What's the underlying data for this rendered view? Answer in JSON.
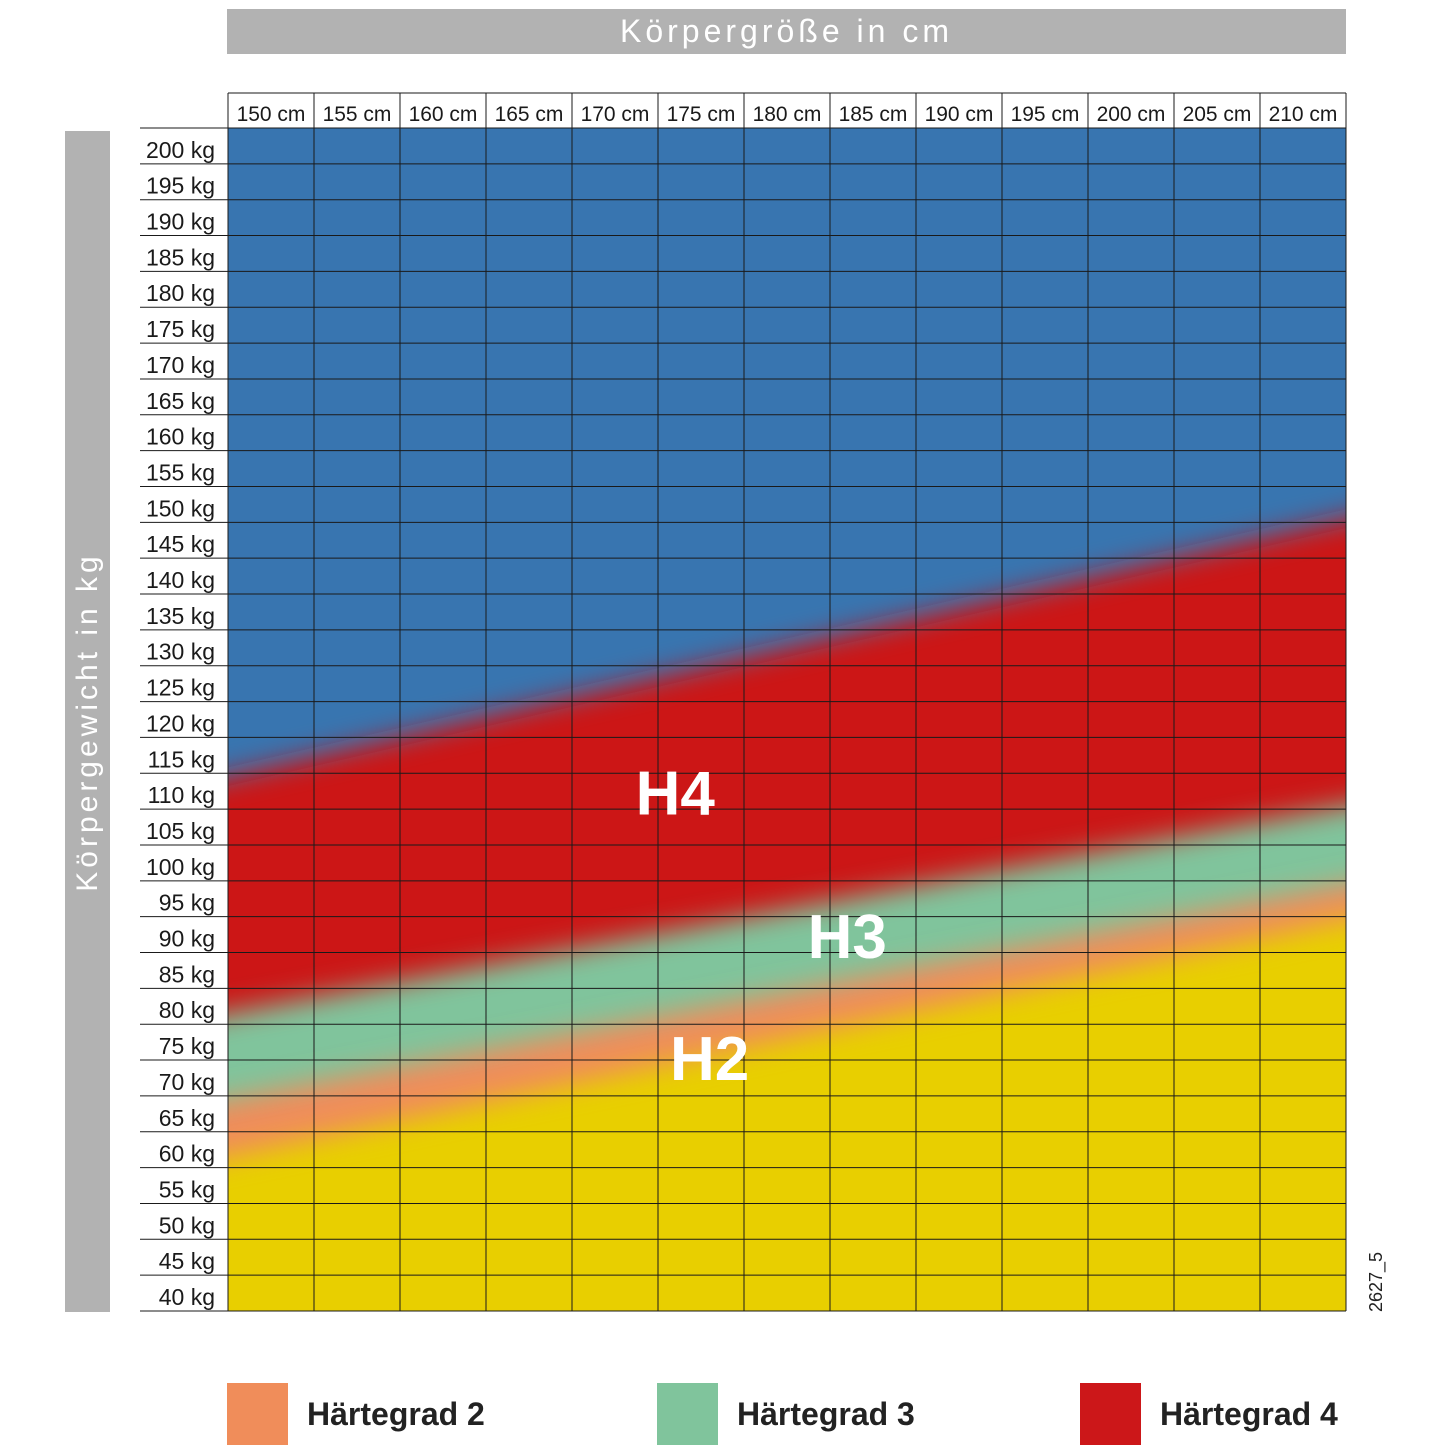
{
  "chart_data": {
    "type": "heatmap",
    "title": "",
    "xlabel": "Körpergröße in cm",
    "ylabel": "Körpergewicht in kg",
    "x_tick_labels": [
      "150 cm",
      "155 cm",
      "160 cm",
      "165 cm",
      "170 cm",
      "175 cm",
      "180 cm",
      "185 cm",
      "190 cm",
      "195 cm",
      "200 cm",
      "205 cm",
      "210 cm"
    ],
    "y_tick_labels": [
      "200 kg",
      "195 kg",
      "190 kg",
      "185 kg",
      "180 kg",
      "175 kg",
      "170 kg",
      "165 kg",
      "160 kg",
      "155 kg",
      "150 kg",
      "145 kg",
      "140 kg",
      "135 kg",
      "130 kg",
      "125 kg",
      "120 kg",
      "115 kg",
      "110 kg",
      "105 kg",
      "100 kg",
      "95 kg",
      "90 kg",
      "85 kg",
      "80 kg",
      "75 kg",
      "70 kg",
      "65 kg",
      "60 kg",
      "55 kg",
      "50 kg",
      "45 kg",
      "40 kg"
    ],
    "xlim": [
      150,
      215
    ],
    "ylim": [
      37.5,
      202.5
    ],
    "grid": true,
    "zones": [
      {
        "label": "",
        "color": "#e8cf00",
        "boundary_top": [
          [
            150,
            59
          ],
          [
            215,
            92
          ]
        ]
      },
      {
        "label": "H2",
        "color": "#f08d5a",
        "boundary_top": [
          [
            150,
            67
          ],
          [
            215,
            97
          ]
        ]
      },
      {
        "label": "H3",
        "color": "#80c49c",
        "boundary_top": [
          [
            150,
            79
          ],
          [
            215,
            108
          ]
        ]
      },
      {
        "label": "H4",
        "color": "#cc1719",
        "boundary_top": [
          [
            150,
            112
          ],
          [
            215,
            148
          ]
        ]
      },
      {
        "label": "",
        "color": "#3875b0",
        "boundary_top": [
          [
            150,
            202.5
          ],
          [
            215,
            202.5
          ]
        ]
      }
    ],
    "zone_labels": [
      {
        "text": "H4",
        "x": 176,
        "y": 109
      },
      {
        "text": "H3",
        "x": 186,
        "y": 89
      },
      {
        "text": "H2",
        "x": 178,
        "y": 72
      }
    ],
    "legend": [
      {
        "name": "Härtegrad 2",
        "color": "#f08d5a"
      },
      {
        "name": "Härtegrad 3",
        "color": "#80c49c"
      },
      {
        "name": "Härtegrad 4",
        "color": "#cc1719"
      }
    ],
    "legend_position": "bottom"
  },
  "figure_code": "2627_5"
}
